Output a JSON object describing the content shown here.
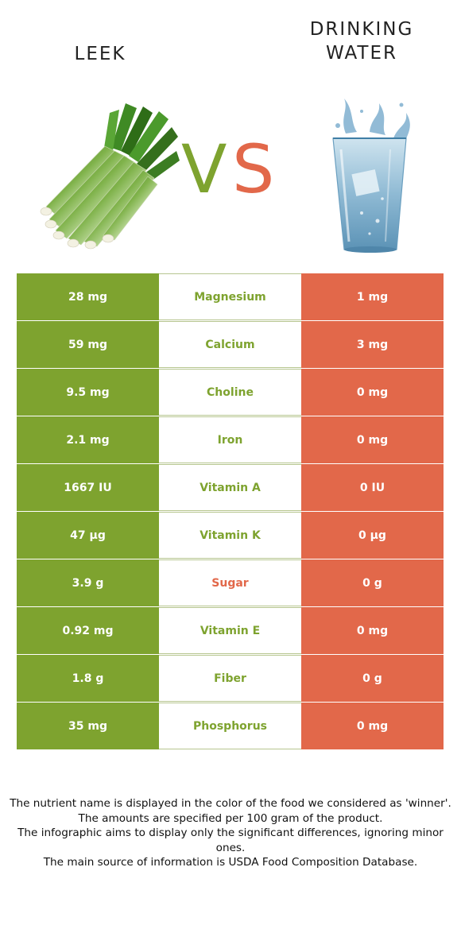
{
  "colors": {
    "left_food": "#7ea32f",
    "right_food": "#e2684a",
    "vs_v": "#7ea32f",
    "vs_s": "#e2684a"
  },
  "header": {
    "left_title": "LEEK",
    "right_title_line1": "DRINKING",
    "right_title_line2": "WATER",
    "vs_v": "V",
    "vs_s": "S"
  },
  "illustrations": {
    "left": "leek-icon",
    "right": "glass-of-water-icon"
  },
  "rows": [
    {
      "left": "28 mg",
      "nutrient": "Magnesium",
      "right": "1 mg",
      "winner": "left"
    },
    {
      "left": "59 mg",
      "nutrient": "Calcium",
      "right": "3 mg",
      "winner": "left"
    },
    {
      "left": "9.5 mg",
      "nutrient": "Choline",
      "right": "0 mg",
      "winner": "left"
    },
    {
      "left": "2.1 mg",
      "nutrient": "Iron",
      "right": "0 mg",
      "winner": "left"
    },
    {
      "left": "1667 IU",
      "nutrient": "Vitamin A",
      "right": "0 IU",
      "winner": "left"
    },
    {
      "left": "47 µg",
      "nutrient": "Vitamin K",
      "right": "0 µg",
      "winner": "left"
    },
    {
      "left": "3.9 g",
      "nutrient": "Sugar",
      "right": "0 g",
      "winner": "right"
    },
    {
      "left": "0.92 mg",
      "nutrient": "Vitamin E",
      "right": "0 mg",
      "winner": "left"
    },
    {
      "left": "1.8 g",
      "nutrient": "Fiber",
      "right": "0 g",
      "winner": "left"
    },
    {
      "left": "35 mg",
      "nutrient": "Phosphorus",
      "right": "0 mg",
      "winner": "left"
    }
  ],
  "footnote": {
    "line1": "The nutrient name is displayed in the color of the food we considered as 'winner'.",
    "line2": "The amounts are specified per 100 gram of the product.",
    "line3": "The infographic aims to display only the significant differences, ignoring minor ones.",
    "line4": "The main source of information is USDA Food Composition Database."
  }
}
